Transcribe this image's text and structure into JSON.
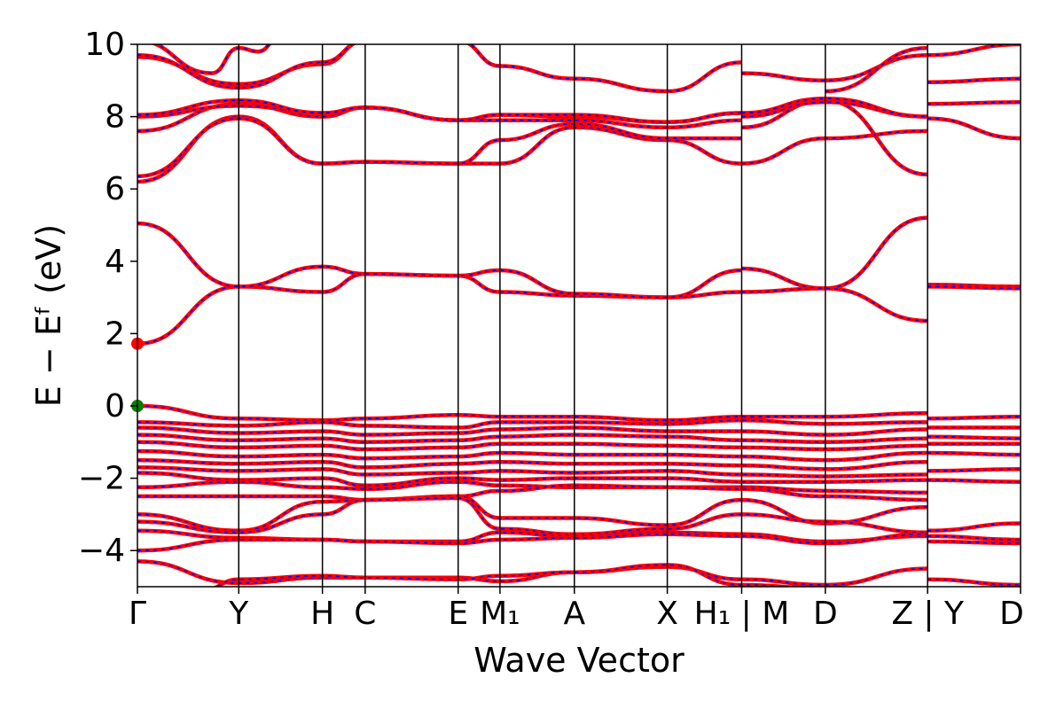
{
  "chart_data": {
    "type": "line",
    "title": "",
    "xlabel": "Wave Vector",
    "ylabel": "E − Eᶠ (eV)",
    "ylim": [
      -5,
      10
    ],
    "yticks": [
      -4,
      -2,
      0,
      2,
      4,
      6,
      8,
      10
    ],
    "ytick_labels": [
      "−4",
      "−2",
      "0",
      "2",
      "4",
      "6",
      "8",
      "10"
    ],
    "grid": false,
    "legend": "none",
    "kpath": [
      {
        "label": "Γ",
        "x": 0.0
      },
      {
        "label": "Y",
        "x": 1.09
      },
      {
        "label": "H",
        "x": 1.99
      },
      {
        "label": "C",
        "x": 2.45
      },
      {
        "label": "E",
        "x": 3.45
      },
      {
        "label": "M₁",
        "x": 3.9
      },
      {
        "label": "A",
        "x": 4.7
      },
      {
        "label": "X",
        "x": 5.7
      },
      {
        "label": "H₁ | M",
        "x": 6.5
      },
      {
        "label": "D",
        "x": 7.4
      },
      {
        "label": "Z | Y",
        "x": 8.5
      },
      {
        "label": "D",
        "x": 9.5
      }
    ],
    "xlim": [
      0,
      9.5
    ],
    "style": {
      "line_color": "#ff0000",
      "dash_color": "#0000ff",
      "cbm_color": "#ff0000",
      "vbm_color": "#008000"
    },
    "markers": [
      {
        "name": "CBM",
        "x": 0.0,
        "y": 1.72
      },
      {
        "name": "VBM",
        "x": 0.0,
        "y": 0.0
      }
    ],
    "bands": [
      {
        "x": [
          0,
          1.09,
          1.99,
          2.45,
          3.45,
          3.9,
          4.7,
          5.7,
          6.5
        ],
        "y": [
          1.72,
          3.3,
          3.15,
          3.65,
          3.6,
          3.15,
          3.05,
          3.0,
          3.15
        ]
      },
      {
        "x": [
          0,
          1.09,
          1.99,
          2.45,
          3.45,
          3.9,
          4.7,
          5.7,
          6.5
        ],
        "y": [
          5.05,
          3.3,
          3.85,
          3.65,
          3.6,
          3.75,
          3.1,
          3.0,
          3.75
        ]
      },
      {
        "x": [
          6.5,
          7.4,
          8.5
        ],
        "y": [
          3.15,
          3.25,
          5.2
        ]
      },
      {
        "x": [
          6.5,
          7.4,
          8.5
        ],
        "y": [
          3.8,
          3.25,
          2.35
        ]
      },
      {
        "x": [
          8.5,
          9.5
        ],
        "y": [
          3.35,
          3.3
        ]
      },
      {
        "x": [
          8.5,
          9.5
        ],
        "y": [
          3.3,
          3.25
        ]
      },
      {
        "x": [
          0,
          1.09,
          1.99,
          2.45,
          3.45,
          3.9,
          4.7,
          5.7,
          6.5
        ],
        "y": [
          6.2,
          8.0,
          6.7,
          6.75,
          6.7,
          6.7,
          7.7,
          7.35,
          6.7
        ]
      },
      {
        "x": [
          0,
          1.09,
          1.99,
          2.45,
          3.45,
          3.9,
          4.7,
          5.7,
          6.5
        ],
        "y": [
          6.35,
          7.95,
          6.7,
          6.75,
          6.7,
          7.35,
          7.8,
          7.4,
          7.4
        ]
      },
      {
        "x": [
          0,
          1.09,
          1.99,
          2.45,
          3.45,
          3.9,
          4.7,
          5.7,
          6.5
        ],
        "y": [
          7.6,
          8.35,
          8.0,
          8.25,
          7.9,
          7.9,
          7.9,
          7.7,
          7.9
        ]
      },
      {
        "x": [
          0,
          1.09,
          1.99,
          2.45,
          3.45,
          3.9,
          4.7,
          5.7,
          6.5
        ],
        "y": [
          8.0,
          8.3,
          8.1,
          8.25,
          7.9,
          8.05,
          8.0,
          7.85,
          8.1
        ]
      },
      {
        "x": [
          0,
          1.09,
          1.99,
          2.45,
          3.45,
          3.9,
          4.7,
          5.7,
          6.5
        ],
        "y": [
          8.05,
          8.45,
          8.1,
          8.25,
          7.9,
          8.05,
          8.05,
          7.85,
          8.1
        ]
      },
      {
        "x": [
          0,
          1.09,
          1.99,
          2.45,
          3.45,
          3.9,
          4.7,
          5.7,
          6.5
        ],
        "y": [
          9.65,
          8.9,
          9.45,
          10.1,
          10.1,
          9.4,
          9.05,
          8.7,
          9.5
        ]
      },
      {
        "x": [
          0,
          1.09,
          1.99,
          2.45
        ],
        "y": [
          9.7,
          8.8,
          9.5,
          10.1
        ]
      },
      {
        "x": [
          0,
          0.8,
          1.09,
          1.3,
          1.5
        ],
        "y": [
          10.1,
          9.2,
          9.9,
          9.8,
          10.1
        ]
      },
      {
        "x": [
          6.5,
          7.4,
          8.5
        ],
        "y": [
          6.7,
          7.4,
          7.6
        ]
      },
      {
        "x": [
          6.5,
          7.4,
          8.5
        ],
        "y": [
          7.7,
          8.45,
          6.4
        ]
      },
      {
        "x": [
          6.5,
          7.4,
          8.5
        ],
        "y": [
          8.0,
          8.4,
          8.0
        ]
      },
      {
        "x": [
          6.5,
          7.4,
          8.5
        ],
        "y": [
          8.1,
          8.5,
          8.0
        ]
      },
      {
        "x": [
          6.5,
          7.4,
          8.5
        ],
        "y": [
          9.2,
          9.0,
          9.7
        ]
      },
      {
        "x": [
          7.4,
          8.5
        ],
        "y": [
          8.7,
          9.9
        ]
      },
      {
        "x": [
          8.5,
          9.5
        ],
        "y": [
          7.95,
          7.4
        ]
      },
      {
        "x": [
          8.5,
          9.5
        ],
        "y": [
          8.35,
          8.4
        ]
      },
      {
        "x": [
          8.5,
          9.5
        ],
        "y": [
          8.95,
          9.05
        ]
      },
      {
        "x": [
          8.5,
          9.5
        ],
        "y": [
          9.7,
          10.0
        ]
      },
      {
        "x": [
          0,
          1.09,
          1.99,
          2.45,
          3.45,
          3.9,
          4.7,
          5.7,
          6.5,
          7.4,
          8.5
        ],
        "y": [
          0.0,
          -0.35,
          -0.4,
          -0.35,
          -0.25,
          -0.3,
          -0.3,
          -0.4,
          -0.3,
          -0.3,
          -0.2
        ]
      },
      {
        "x": [
          0,
          1.09,
          1.99,
          2.45,
          3.45,
          3.9,
          4.7,
          5.7,
          6.5,
          7.4,
          8.5
        ],
        "y": [
          -0.45,
          -0.55,
          -0.45,
          -0.55,
          -0.6,
          -0.45,
          -0.45,
          -0.5,
          -0.4,
          -0.5,
          -0.45
        ]
      },
      {
        "x": [
          0,
          1.09,
          1.99,
          2.45,
          3.45,
          3.9,
          4.7,
          5.7,
          6.5,
          7.4,
          8.5
        ],
        "y": [
          -0.6,
          -0.75,
          -0.7,
          -0.8,
          -0.75,
          -0.65,
          -0.6,
          -0.7,
          -0.7,
          -0.8,
          -0.65
        ]
      },
      {
        "x": [
          0,
          1.09,
          1.99,
          2.45,
          3.45,
          3.9,
          4.7,
          5.7,
          6.5,
          7.4,
          8.5
        ],
        "y": [
          -0.8,
          -0.95,
          -0.9,
          -1.0,
          -0.95,
          -0.85,
          -0.8,
          -0.85,
          -0.95,
          -1.0,
          -0.9
        ]
      },
      {
        "x": [
          0,
          1.09,
          1.99,
          2.45,
          3.45,
          3.9,
          4.7,
          5.7,
          6.5,
          7.4,
          8.5
        ],
        "y": [
          -1.0,
          -1.15,
          -1.1,
          -1.2,
          -1.15,
          -1.05,
          -1.05,
          -1.1,
          -1.15,
          -1.2,
          -1.1
        ]
      },
      {
        "x": [
          0,
          1.09,
          1.99,
          2.45,
          3.45,
          3.9,
          4.7,
          5.7,
          6.5,
          7.4,
          8.5
        ],
        "y": [
          -1.25,
          -1.4,
          -1.35,
          -1.45,
          -1.4,
          -1.3,
          -1.35,
          -1.35,
          -1.4,
          -1.5,
          -1.3
        ]
      },
      {
        "x": [
          0,
          1.09,
          1.99,
          2.45,
          3.45,
          3.9,
          4.7,
          5.7,
          6.5,
          7.4,
          8.5
        ],
        "y": [
          -1.5,
          -1.6,
          -1.55,
          -1.7,
          -1.6,
          -1.55,
          -1.6,
          -1.6,
          -1.65,
          -1.75,
          -1.55
        ]
      },
      {
        "x": [
          0,
          1.09,
          1.99,
          2.45,
          3.45,
          3.9,
          4.7,
          5.7,
          6.5,
          7.4,
          8.5
        ],
        "y": [
          -1.7,
          -1.8,
          -1.75,
          -1.9,
          -1.85,
          -1.8,
          -1.85,
          -1.8,
          -1.9,
          -1.95,
          -1.9
        ]
      },
      {
        "x": [
          0,
          1.09,
          1.99,
          2.45,
          3.45,
          3.9,
          4.7,
          5.7,
          6.5,
          7.4,
          8.5
        ],
        "y": [
          -1.85,
          -2.05,
          -2.0,
          -2.2,
          -2.0,
          -2.05,
          -2.0,
          -2.0,
          -2.1,
          -2.1,
          -2.05
        ]
      },
      {
        "x": [
          0,
          1.09,
          1.99,
          2.45,
          3.45,
          3.9,
          4.7,
          5.7,
          6.5,
          7.4,
          8.5
        ],
        "y": [
          -2.25,
          -2.1,
          -2.25,
          -2.3,
          -2.1,
          -2.2,
          -2.25,
          -2.25,
          -2.25,
          -2.35,
          -2.4
        ]
      },
      {
        "x": [
          0,
          1.09,
          1.99,
          2.45,
          3.45,
          3.9,
          4.7,
          5.7,
          6.5,
          7.4,
          8.5
        ],
        "y": [
          -2.5,
          -2.5,
          -2.5,
          -2.6,
          -2.5,
          -2.35,
          -2.2,
          -2.25,
          -2.3,
          -2.5,
          -2.6
        ]
      },
      {
        "x": [
          0,
          1.09,
          1.99,
          2.45,
          3.45,
          3.9,
          4.7,
          5.7,
          6.5,
          7.4,
          8.5
        ],
        "y": [
          -3.0,
          -3.45,
          -2.65,
          -2.6,
          -2.5,
          -3.1,
          -3.1,
          -3.3,
          -2.6,
          -3.25,
          -2.8
        ]
      },
      {
        "x": [
          0,
          1.09,
          1.99,
          2.45,
          3.45,
          3.9,
          4.7,
          5.7,
          6.5,
          7.4,
          8.5
        ],
        "y": [
          -3.2,
          -3.5,
          -3.0,
          -2.6,
          -2.55,
          -3.4,
          -3.55,
          -3.4,
          -3.0,
          -3.2,
          -3.5
        ]
      },
      {
        "x": [
          0,
          1.09,
          1.99,
          2.45,
          3.45,
          3.9,
          4.7,
          5.7,
          6.5,
          7.4,
          8.5
        ],
        "y": [
          -3.45,
          -3.65,
          -3.7,
          -3.75,
          -3.75,
          -3.5,
          -3.6,
          -3.5,
          -3.55,
          -3.75,
          -3.6
        ]
      },
      {
        "x": [
          0,
          1.09,
          1.99,
          2.45,
          3.45,
          3.9,
          4.7,
          5.7,
          6.5,
          7.4,
          8.5
        ],
        "y": [
          -4.0,
          -3.7,
          -3.7,
          -3.75,
          -3.8,
          -3.7,
          -3.65,
          -3.55,
          -3.6,
          -3.8,
          -3.55
        ]
      },
      {
        "x": [
          0,
          1.09,
          1.99,
          2.45,
          3.45,
          3.9,
          4.7,
          5.7,
          6.5,
          7.4,
          8.5
        ],
        "y": [
          -4.3,
          -4.9,
          -4.75,
          -4.75,
          -4.75,
          -4.85,
          -4.6,
          -4.45,
          -4.8,
          -4.95,
          -4.5
        ]
      },
      {
        "x": [
          0.7,
          1.09,
          1.99,
          2.45,
          3.45,
          3.9,
          4.7,
          5.7,
          6.5,
          7.4,
          7.9
        ],
        "y": [
          -5.1,
          -4.8,
          -4.7,
          -4.75,
          -4.8,
          -4.7,
          -4.6,
          -4.4,
          -4.95,
          -5.05,
          -5.1
        ]
      },
      {
        "x": [
          8.5,
          9.5
        ],
        "y": [
          -0.35,
          -0.3
        ]
      },
      {
        "x": [
          8.5,
          9.5
        ],
        "y": [
          -0.6,
          -0.6
        ]
      },
      {
        "x": [
          8.5,
          9.5
        ],
        "y": [
          -0.85,
          -0.9
        ]
      },
      {
        "x": [
          8.5,
          9.5
        ],
        "y": [
          -1.05,
          -1.05
        ]
      },
      {
        "x": [
          8.5,
          9.5
        ],
        "y": [
          -1.3,
          -1.35
        ]
      },
      {
        "x": [
          8.5,
          9.5
        ],
        "y": [
          -1.8,
          -1.75
        ]
      },
      {
        "x": [
          8.5,
          9.5
        ],
        "y": [
          -2.05,
          -2.1
        ]
      },
      {
        "x": [
          8.5,
          9.5
        ],
        "y": [
          -3.45,
          -3.25
        ]
      },
      {
        "x": [
          8.5,
          9.5
        ],
        "y": [
          -3.6,
          -3.7
        ]
      },
      {
        "x": [
          8.5,
          9.5
        ],
        "y": [
          -3.75,
          -3.8
        ]
      },
      {
        "x": [
          8.5,
          9.5
        ],
        "y": [
          -4.8,
          -4.95
        ]
      }
    ]
  }
}
